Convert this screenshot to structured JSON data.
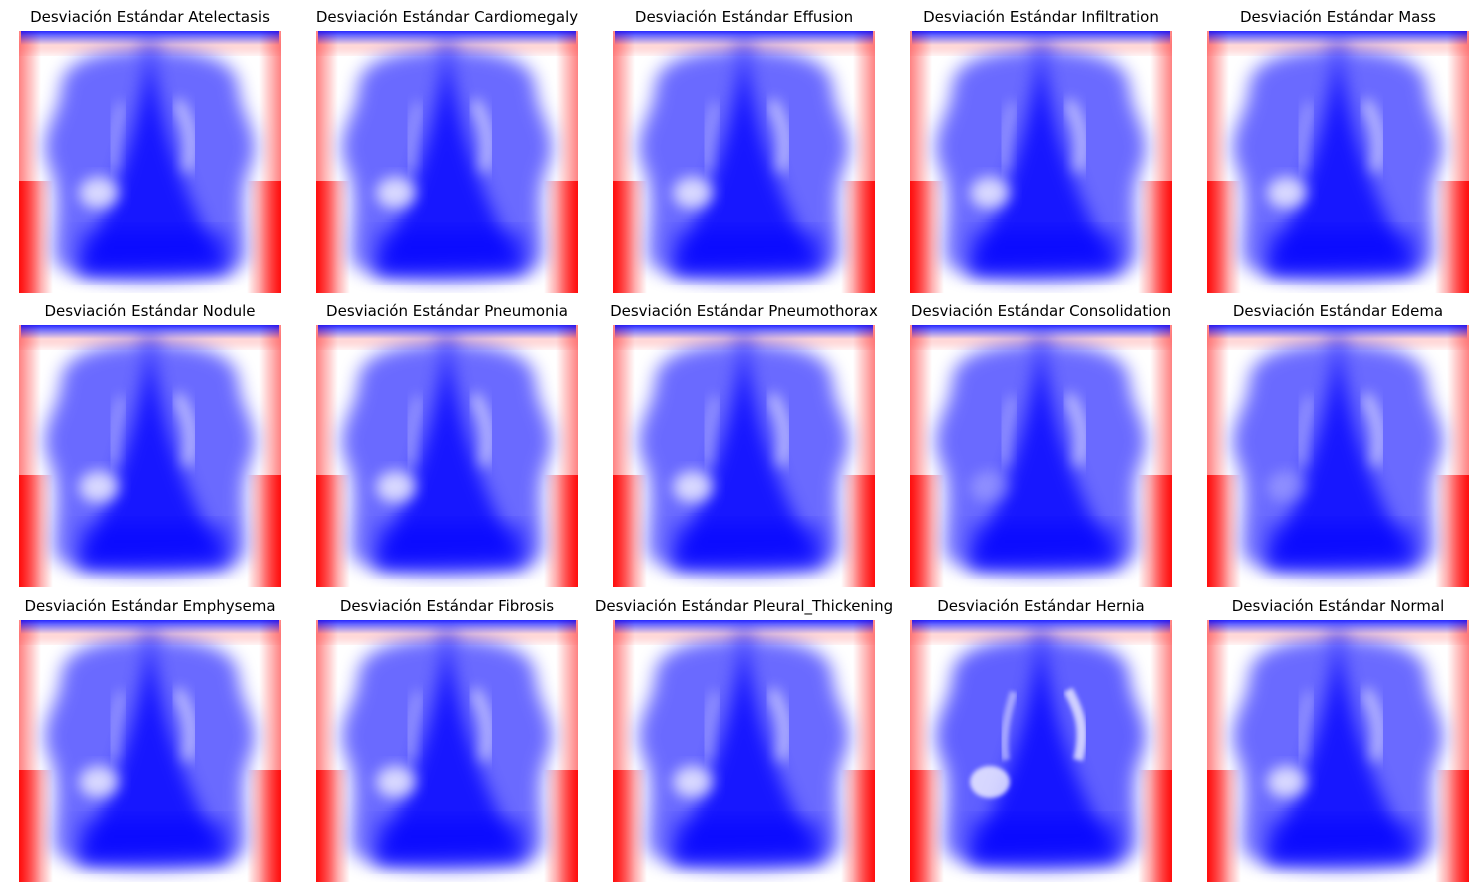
{
  "panels": [
    {
      "title": "Desviación Estándar Atelectasis"
    },
    {
      "title": "Desviación Estándar Cardiomegaly"
    },
    {
      "title": "Desviación Estándar Effusion"
    },
    {
      "title": "Desviación Estándar Infiltration"
    },
    {
      "title": "Desviación Estándar Mass"
    },
    {
      "title": "Desviación Estándar Nodule"
    },
    {
      "title": "Desviación Estándar Pneumonia"
    },
    {
      "title": "Desviación Estándar Pneumothorax"
    },
    {
      "title": "Desviación Estándar Consolidation"
    },
    {
      "title": "Desviación Estándar Edema"
    },
    {
      "title": "Desviación Estándar Emphysema"
    },
    {
      "title": "Desviación Estándar Fibrosis"
    },
    {
      "title": "Desviación Estándar Pleural_Thickening"
    },
    {
      "title": "Desviación Estándar Hernia"
    },
    {
      "title": "Desviación Estándar Normal"
    }
  ],
  "colormap": {
    "low": "#0000ff",
    "mid": "#ffffff",
    "high": "#ff0000"
  }
}
